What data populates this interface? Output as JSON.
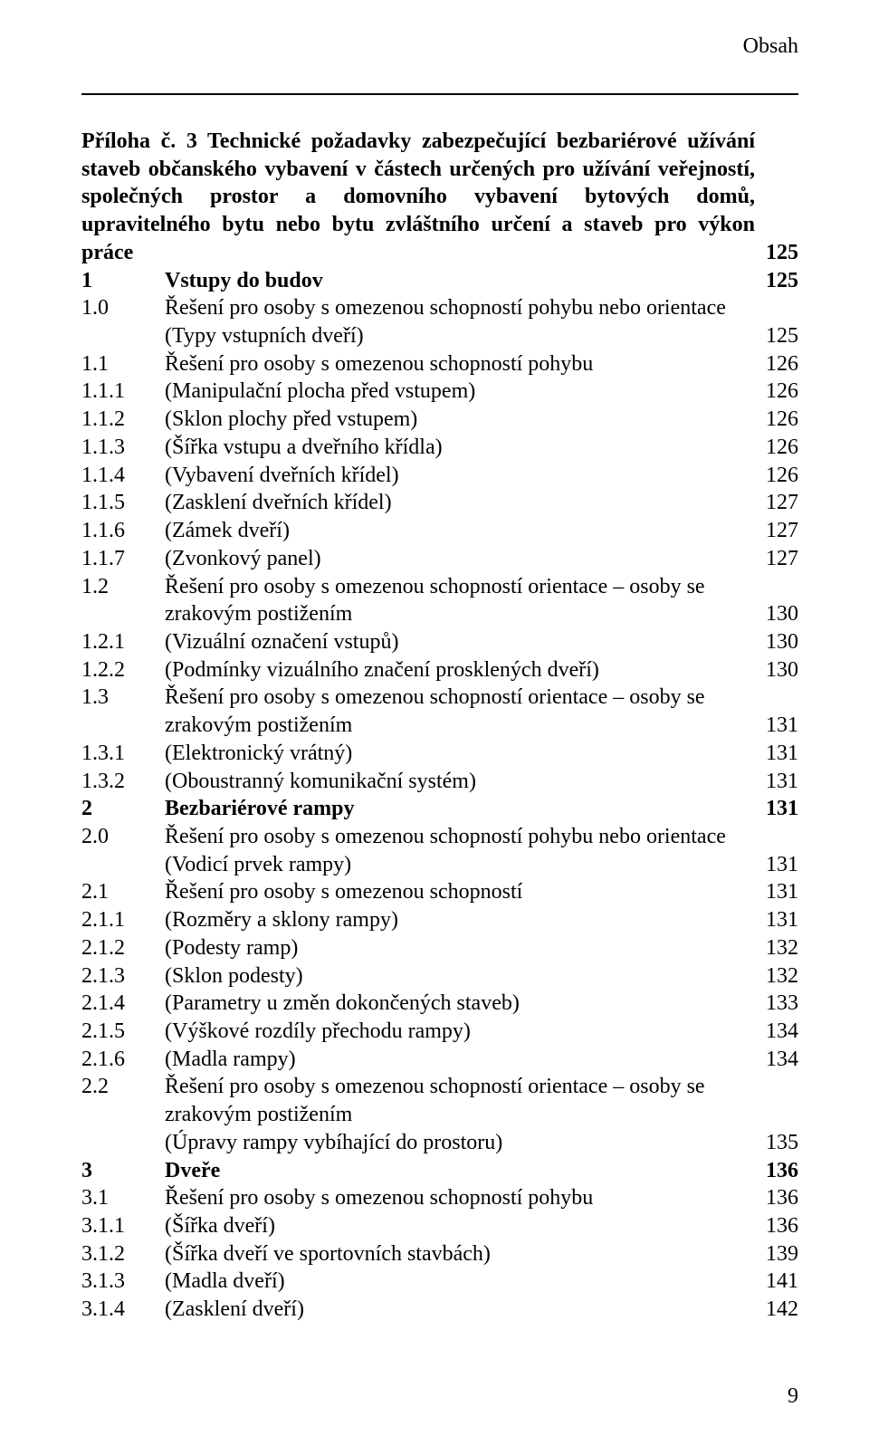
{
  "header": {
    "label": "Obsah"
  },
  "section_title": "Příloha č. 3 Technické požadavky zabezpečující bezbariérové užívání staveb občanského vybavení v částech určených pro užívání veřejností, společných prostor a domovního vybavení bytových domů, upravitelného bytu nebo bytu zvláštního určení a staveb pro výkon práce",
  "section_page": "125",
  "rows": [
    {
      "n": "1",
      "t": "Vstupy do budov",
      "p": "125",
      "bold": true
    },
    {
      "n": "1.0",
      "t": "Řešení pro osoby s omezenou schopností pohybu nebo orientace",
      "p": ""
    },
    {
      "n": "",
      "t": "(Typy vstupních dveří)",
      "p": "125"
    },
    {
      "n": "1.1",
      "t": "Řešení pro osoby s omezenou schopností pohybu",
      "p": "126"
    },
    {
      "n": "1.1.1",
      "t": "(Manipulační plocha před vstupem)",
      "p": "126"
    },
    {
      "n": "1.1.2",
      "t": "(Sklon plochy před vstupem)",
      "p": "126"
    },
    {
      "n": "1.1.3",
      "t": "(Šířka vstupu a dveřního křídla)",
      "p": "126"
    },
    {
      "n": "1.1.4",
      "t": "(Vybavení dveřních křídel)",
      "p": "126"
    },
    {
      "n": "1.1.5",
      "t": "(Zasklení dveřních křídel)",
      "p": "127"
    },
    {
      "n": "1.1.6",
      "t": "(Zámek dveří)",
      "p": "127"
    },
    {
      "n": "1.1.7",
      "t": "(Zvonkový panel)",
      "p": "127"
    },
    {
      "n": "1.2",
      "t": "Řešení pro osoby s omezenou schopností orientace – osoby se",
      "p": ""
    },
    {
      "n": "",
      "t": "zrakovým postižením",
      "p": "130"
    },
    {
      "n": "1.2.1",
      "t": "(Vizuální označení vstupů)",
      "p": "130"
    },
    {
      "n": "1.2.2",
      "t": "(Podmínky vizuálního značení prosklených dveří)",
      "p": "130"
    },
    {
      "n": "1.3",
      "t": "Řešení pro osoby s omezenou schopností orientace – osoby se",
      "p": ""
    },
    {
      "n": "",
      "t": "zrakovým postižením",
      "p": "131"
    },
    {
      "n": "1.3.1",
      "t": "(Elektronický vrátný)",
      "p": "131"
    },
    {
      "n": "1.3.2",
      "t": "(Oboustranný komunikační systém)",
      "p": "131"
    },
    {
      "n": "2",
      "t": "Bezbariérové rampy",
      "p": "131",
      "bold": true
    },
    {
      "n": "2.0",
      "t": "Řešení pro osoby s omezenou schopností pohybu nebo orientace",
      "p": ""
    },
    {
      "n": "",
      "t": "(Vodicí prvek rampy)",
      "p": "131"
    },
    {
      "n": "2.1",
      "t": "Řešení pro osoby s omezenou schopností",
      "p": "131"
    },
    {
      "n": "2.1.1",
      "t": "(Rozměry a sklony rampy)",
      "p": "131"
    },
    {
      "n": "2.1.2",
      "t": "(Podesty ramp)",
      "p": "132"
    },
    {
      "n": "2.1.3",
      "t": "(Sklon podesty)",
      "p": "132"
    },
    {
      "n": "2.1.4",
      "t": "(Parametry u změn dokončených staveb)",
      "p": "133"
    },
    {
      "n": "2.1.5",
      "t": "(Výškové rozdíly přechodu rampy)",
      "p": "134"
    },
    {
      "n": "2.1.6",
      "t": "(Madla rampy)",
      "p": "134"
    },
    {
      "n": "2.2",
      "t": "Řešení pro osoby s omezenou schopností orientace – osoby se",
      "p": ""
    },
    {
      "n": "",
      "t": "zrakovým postižením",
      "p": ""
    },
    {
      "n": "",
      "t": "(Úpravy rampy vybíhající do prostoru)",
      "p": "135"
    },
    {
      "n": "3",
      "t": "Dveře",
      "p": "136",
      "bold": true
    },
    {
      "n": "3.1",
      "t": "Řešení pro osoby s omezenou schopností pohybu",
      "p": "136"
    },
    {
      "n": "3.1.1",
      "t": "(Šířka dveří)",
      "p": "136"
    },
    {
      "n": "3.1.2",
      "t": "(Šířka dveří ve sportovních stavbách)",
      "p": "139"
    },
    {
      "n": "3.1.3",
      "t": "(Madla dveří)",
      "p": "141"
    },
    {
      "n": "3.1.4",
      "t": "(Zasklení dveří)",
      "p": "142"
    }
  ],
  "page_number": "9"
}
